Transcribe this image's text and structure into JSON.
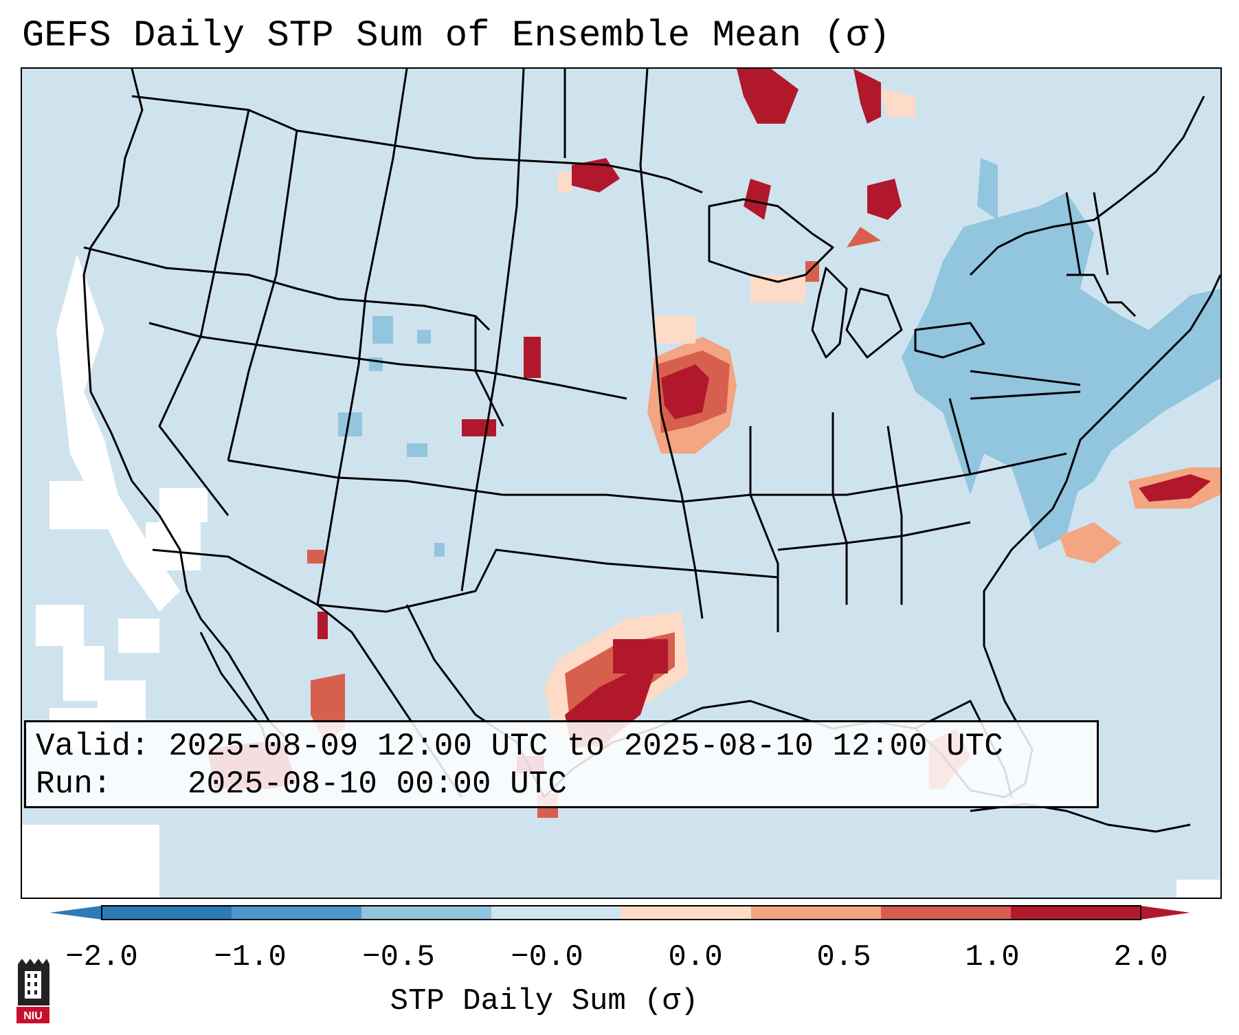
{
  "title": "GEFS Daily STP Sum of Ensemble Mean (σ)",
  "info": {
    "valid_label": "Valid:",
    "valid_value": "2025-08-09 12:00 UTC to 2025-08-10 12:00 UTC",
    "run_label": "Run:",
    "run_value": "2025-08-10 00:00 UTC"
  },
  "colorbar": {
    "label": "STP Daily Sum (σ)",
    "ticks": [
      "−2.0",
      "−1.0",
      "−0.5",
      "−0.0",
      "0.0",
      "0.5",
      "1.0",
      "2.0"
    ],
    "colors": [
      "#2c7bb6",
      "#4e97c9",
      "#92c5de",
      "#d1e5f0",
      "#fddbc7",
      "#f4a582",
      "#d6604d",
      "#b2182b"
    ],
    "extend": "both"
  },
  "map": {
    "region": "CONUS",
    "background_color": "#d1e5f0",
    "land_borders": "black state and country outlines",
    "notable_anomalies": [
      {
        "area": "Central Texas",
        "sign": "positive",
        "level": "2.0"
      },
      {
        "area": "Iowa / Minnesota",
        "sign": "positive",
        "level": "1.0-2.0"
      },
      {
        "area": "Northern Michigan / Ontario",
        "sign": "positive",
        "level": "2.0"
      },
      {
        "area": "Western North Carolina offshore Atlantic",
        "sign": "positive",
        "level": "2.0"
      },
      {
        "area": "Northeast US / New England",
        "sign": "negative",
        "level": "-0.5"
      },
      {
        "area": "Pacific west of California",
        "sign": "near-zero",
        "level": "-0.0 to 0.0"
      }
    ]
  },
  "logo": {
    "text": "NIU"
  }
}
